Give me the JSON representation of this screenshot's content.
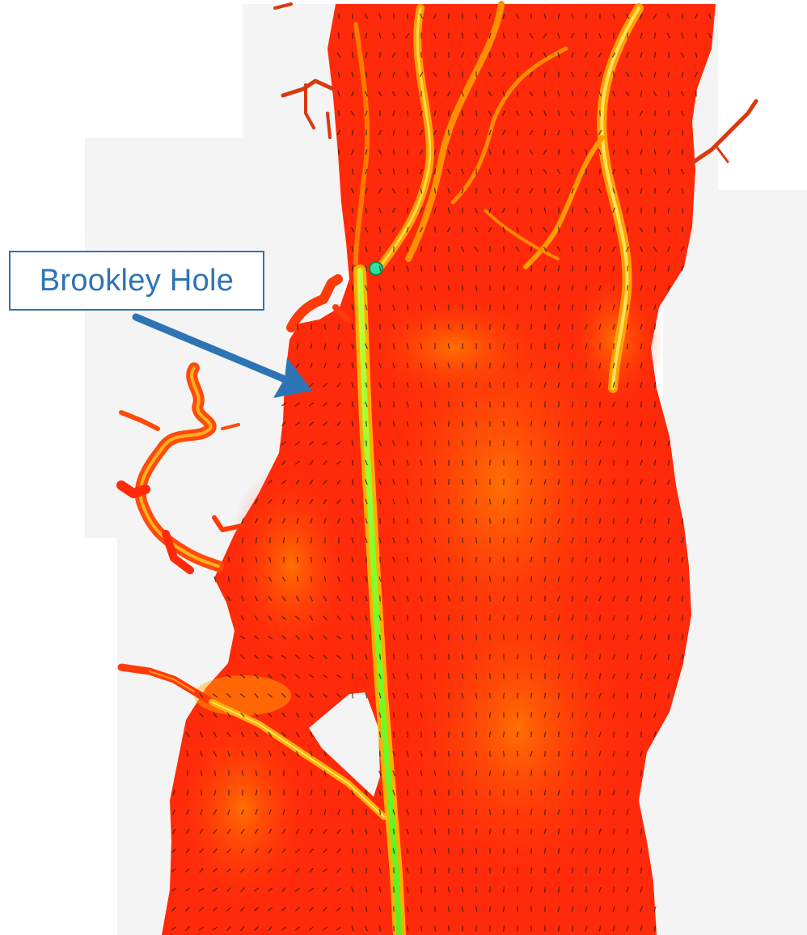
{
  "map": {
    "annotation": {
      "label": "Brookley Hole"
    },
    "colors": {
      "background_light": "#f4f4f4",
      "water_high": "#ff2a0a",
      "water_mid": "#ff7a00",
      "channel": "#8cff2a",
      "hole": "#2fe0a0",
      "arrow_blue": "#2e74b5",
      "vector_stroke": "#2a1a10"
    },
    "legend": {
      "shown": false
    }
  }
}
